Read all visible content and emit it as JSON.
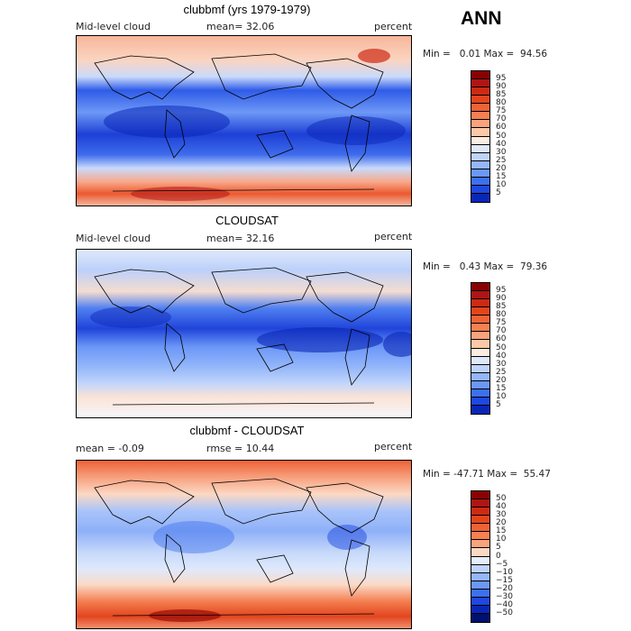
{
  "header": {
    "season": "ANN"
  },
  "panels": [
    {
      "title": "clubbmf (yrs 1979-1979)",
      "left_label": "Mid-level cloud",
      "center_label": "mean=  32.06",
      "right_label": "percent",
      "minmax": "Min =   0.01 Max =  94.56",
      "colorbar_ticks": [
        "95",
        "90",
        "85",
        "80",
        "75",
        "70",
        "60",
        "50",
        "40",
        "30",
        "25",
        "20",
        "15",
        "10",
        "5"
      ],
      "colorbar_colors": [
        "#8b0000",
        "#b01414",
        "#cd2a14",
        "#e2451e",
        "#ee6236",
        "#f58052",
        "#f9a37c",
        "#fcc8a8",
        "#fdece0",
        "#dfe9fb",
        "#bfd3fb",
        "#94b6fa",
        "#6b97f7",
        "#3e70ee",
        "#1e48e0",
        "#0a26b8"
      ]
    },
    {
      "title": "CLOUDSAT",
      "left_label": "Mid-level cloud",
      "center_label": "mean=  32.16",
      "right_label": "percent",
      "minmax": "Min =   0.43 Max =  79.36",
      "colorbar_ticks": [
        "95",
        "90",
        "85",
        "80",
        "75",
        "70",
        "60",
        "50",
        "40",
        "30",
        "25",
        "20",
        "15",
        "10",
        "5"
      ],
      "colorbar_colors": [
        "#8b0000",
        "#b01414",
        "#cd2a14",
        "#e2451e",
        "#ee6236",
        "#f58052",
        "#f9a37c",
        "#fcc8a8",
        "#fdece0",
        "#dfe9fb",
        "#bfd3fb",
        "#94b6fa",
        "#6b97f7",
        "#3e70ee",
        "#1e48e0",
        "#0a26b8"
      ]
    },
    {
      "title": "clubbmf - CLOUDSAT",
      "left_label": "mean =  -0.09",
      "center_label": "rmse =  10.44",
      "right_label": "percent",
      "minmax": "Min = -47.71 Max =  55.47",
      "colorbar_ticks": [
        "50",
        "40",
        "30",
        "20",
        "15",
        "10",
        "5",
        "0",
        "−5",
        "−10",
        "−15",
        "−20",
        "−30",
        "−40",
        "−50"
      ],
      "colorbar_colors": [
        "#8b0000",
        "#b01414",
        "#cd2a14",
        "#e2451e",
        "#ee6236",
        "#f58052",
        "#f9a37c",
        "#fcd8c4",
        "#e6eefc",
        "#bfd3fb",
        "#94b6fa",
        "#6b97f7",
        "#3e70ee",
        "#1e48e0",
        "#0a26b8",
        "#00106e"
      ]
    }
  ],
  "chart_data": [
    {
      "type": "heatmap",
      "title": "clubbmf (yrs 1979-1979)",
      "variable": "Mid-level cloud",
      "units": "percent",
      "mean": 32.06,
      "min": 0.01,
      "max": 94.56,
      "levels": [
        5,
        10,
        15,
        20,
        25,
        30,
        40,
        50,
        60,
        70,
        75,
        80,
        85,
        90,
        95
      ]
    },
    {
      "type": "heatmap",
      "title": "CLOUDSAT",
      "variable": "Mid-level cloud",
      "units": "percent",
      "mean": 32.16,
      "min": 0.43,
      "max": 79.36,
      "levels": [
        5,
        10,
        15,
        20,
        25,
        30,
        40,
        50,
        60,
        70,
        75,
        80,
        85,
        90,
        95
      ]
    },
    {
      "type": "heatmap",
      "title": "clubbmf - CLOUDSAT",
      "units": "percent",
      "mean": -0.09,
      "rmse": 10.44,
      "min": -47.71,
      "max": 55.47,
      "levels": [
        -50,
        -40,
        -30,
        -20,
        -15,
        -10,
        -5,
        0,
        5,
        10,
        15,
        20,
        30,
        40,
        50
      ]
    }
  ]
}
